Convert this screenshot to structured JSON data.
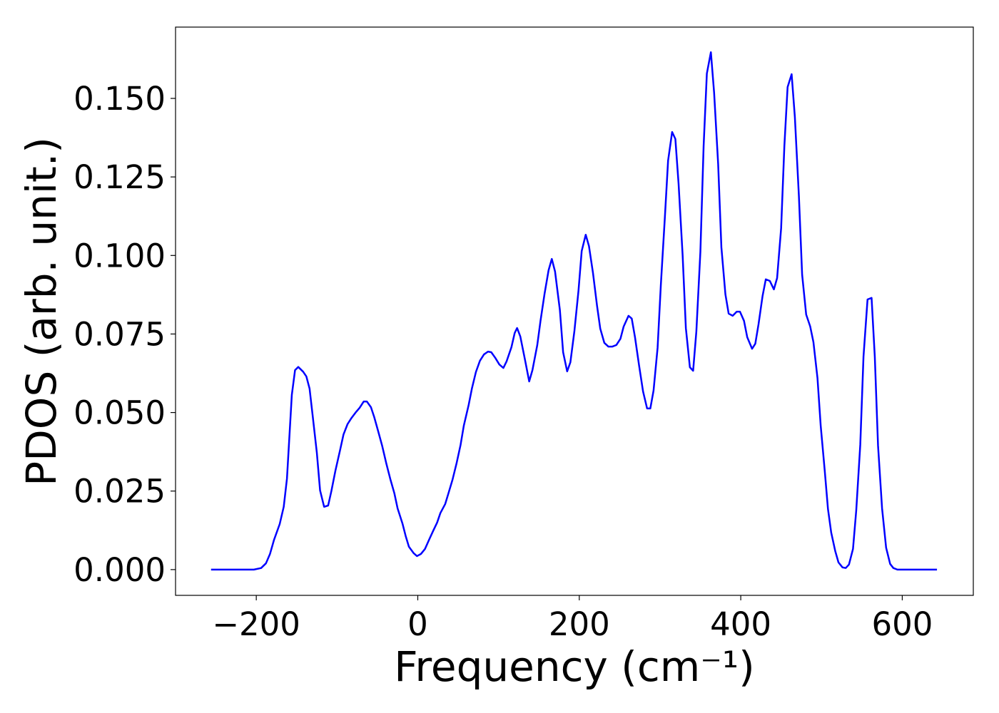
{
  "chart_data": {
    "type": "line",
    "x_label": "Frequency (cm⁻¹)",
    "y_label": "PDOS (arb. unit.)",
    "xlim": [
      -300,
      688
    ],
    "ylim": [
      -0.0082,
      0.1727
    ],
    "xticks": [
      {
        "value": -200,
        "label": "−200"
      },
      0,
      200,
      400,
      600
    ],
    "yticks": [
      {
        "value": 0,
        "label": "0.000"
      },
      {
        "value": 0.025,
        "label": "0.025"
      },
      {
        "value": 0.05,
        "label": "0.050"
      },
      {
        "value": 0.075,
        "label": "0.075"
      },
      {
        "value": 0.1,
        "label": "0.100"
      },
      {
        "value": 0.125,
        "label": "0.125"
      },
      {
        "value": 0.15,
        "label": "0.150"
      }
    ],
    "x": [
      -256,
      -203,
      -194,
      -188,
      -183,
      -178,
      -171,
      -166,
      -162,
      -156,
      -152,
      -148,
      -142,
      -138,
      -134,
      -130,
      -125,
      -121,
      -116,
      -111,
      -107,
      -102,
      -96,
      -92,
      -87,
      -82,
      -77,
      -72,
      -67,
      -63,
      -58,
      -54,
      -49,
      -44,
      -39,
      -34,
      -29,
      -25,
      -19,
      -15,
      -11,
      -5,
      -1,
      4,
      9,
      14,
      19,
      24,
      28,
      34,
      38,
      43,
      48,
      53,
      57,
      63,
      67,
      72,
      77,
      82,
      87,
      91,
      96,
      101,
      106,
      110,
      116,
      120,
      123,
      127,
      133,
      138,
      142,
      148,
      152,
      157,
      162,
      166,
      170,
      176,
      180,
      185,
      189,
      194,
      199,
      203,
      208,
      212,
      217,
      222,
      226,
      231,
      236,
      241,
      246,
      251,
      255,
      261,
      265,
      269,
      274,
      279,
      284,
      288,
      292,
      297,
      301,
      306,
      310,
      315,
      319,
      323,
      328,
      332,
      337,
      341,
      345,
      350,
      354,
      358,
      363,
      367,
      372,
      376,
      381,
      385,
      390,
      395,
      399,
      404,
      408,
      414,
      418,
      422,
      427,
      431,
      436,
      441,
      445,
      450,
      454,
      458,
      463,
      467,
      472,
      476,
      481,
      486,
      490,
      495,
      499,
      504,
      508,
      512,
      517,
      521,
      526,
      530,
      534,
      539,
      543,
      548,
      552,
      557,
      562,
      566,
      570,
      575,
      580,
      585,
      589,
      594,
      643
    ],
    "series": [
      {
        "color": "#0000ff",
        "values": [
          0,
          0,
          0.0005,
          0.002,
          0.005,
          0.0095,
          0.0145,
          0.02,
          0.029,
          0.0556,
          0.0635,
          0.0645,
          0.063,
          0.0615,
          0.0576,
          0.0486,
          0.0372,
          0.0252,
          0.02,
          0.0204,
          0.025,
          0.0315,
          0.0383,
          0.043,
          0.0463,
          0.0483,
          0.05,
          0.0515,
          0.0535,
          0.0535,
          0.0517,
          0.0486,
          0.044,
          0.0393,
          0.0338,
          0.0288,
          0.0243,
          0.0195,
          0.0147,
          0.0107,
          0.0073,
          0.0052,
          0.0043,
          0.005,
          0.0066,
          0.0095,
          0.0123,
          0.015,
          0.018,
          0.0209,
          0.0243,
          0.0286,
          0.0338,
          0.0397,
          0.0458,
          0.0524,
          0.0576,
          0.0629,
          0.0665,
          0.0685,
          0.0694,
          0.0692,
          0.0674,
          0.0653,
          0.0642,
          0.0663,
          0.0708,
          0.0753,
          0.0769,
          0.0742,
          0.0665,
          0.0599,
          0.0635,
          0.0715,
          0.0792,
          0.0878,
          0.0953,
          0.0989,
          0.0949,
          0.0826,
          0.0692,
          0.0631,
          0.066,
          0.076,
          0.0887,
          0.1014,
          0.1066,
          0.103,
          0.0944,
          0.084,
          0.0767,
          0.0722,
          0.071,
          0.071,
          0.0715,
          0.0735,
          0.0774,
          0.0808,
          0.0799,
          0.074,
          0.0651,
          0.0567,
          0.0513,
          0.0513,
          0.057,
          0.0706,
          0.0905,
          0.1121,
          0.1302,
          0.1393,
          0.1371,
          0.1228,
          0.1001,
          0.0769,
          0.0644,
          0.0633,
          0.0758,
          0.1012,
          0.1348,
          0.1579,
          0.1647,
          0.1518,
          0.1291,
          0.1026,
          0.0876,
          0.0815,
          0.0808,
          0.0821,
          0.0821,
          0.0792,
          0.074,
          0.0703,
          0.0719,
          0.0781,
          0.0871,
          0.0924,
          0.0919,
          0.0892,
          0.0928,
          0.1087,
          0.1348,
          0.1536,
          0.1577,
          0.1441,
          0.1189,
          0.0939,
          0.0812,
          0.0774,
          0.0724,
          0.061,
          0.0458,
          0.0315,
          0.0193,
          0.0118,
          0.0059,
          0.0023,
          0.0007,
          0.0005,
          0.0016,
          0.0066,
          0.0188,
          0.0397,
          0.0678,
          0.086,
          0.0865,
          0.0678,
          0.0395,
          0.0195,
          0.007,
          0.0018,
          0.0005,
          0,
          0
        ]
      }
    ]
  }
}
